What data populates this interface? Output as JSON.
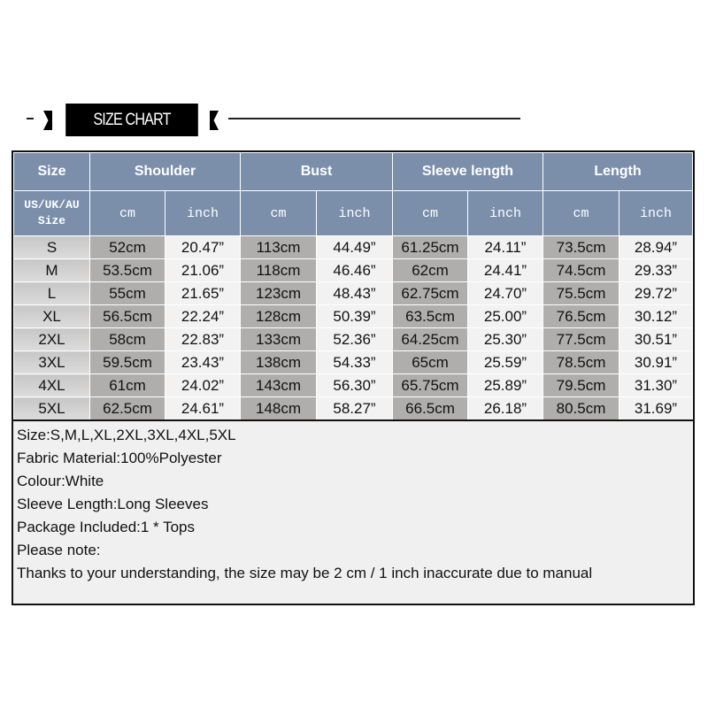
{
  "banner": {
    "title": "SIZE CHART"
  },
  "table": {
    "headers": [
      "Size",
      "Shoulder",
      "Bust",
      "Sleeve length",
      "Length"
    ],
    "subheaders": {
      "size": "US/UK/AU Size",
      "cm": "cm",
      "inch": "inch"
    },
    "rows": [
      [
        "S",
        "52cm",
        "20.47”",
        "113cm",
        "44.49”",
        "61.25cm",
        "24.11”",
        "73.5cm",
        "28.94”"
      ],
      [
        "M",
        "53.5cm",
        "21.06”",
        "118cm",
        "46.46”",
        "62cm",
        "24.41”",
        "74.5cm",
        "29.33”"
      ],
      [
        "L",
        "55cm",
        "21.65”",
        "123cm",
        "48.43”",
        "62.75cm",
        "24.70”",
        "75.5cm",
        "29.72”"
      ],
      [
        "XL",
        "56.5cm",
        "22.24”",
        "128cm",
        "50.39”",
        "63.5cm",
        "25.00”",
        "76.5cm",
        "30.12”"
      ],
      [
        "2XL",
        "58cm",
        "22.83”",
        "133cm",
        "52.36”",
        "64.25cm",
        "25.30”",
        "77.5cm",
        "30.51”"
      ],
      [
        "3XL",
        "59.5cm",
        "23.43”",
        "138cm",
        "54.33”",
        "65cm",
        "25.59”",
        "78.5cm",
        "30.91”"
      ],
      [
        "4XL",
        "61cm",
        "24.02”",
        "143cm",
        "56.30”",
        "65.75cm",
        "25.89”",
        "79.5cm",
        "31.30”"
      ],
      [
        "5XL",
        "62.5cm",
        "24.61”",
        "148cm",
        "58.27”",
        "66.5cm",
        "26.18”",
        "80.5cm",
        "31.69”"
      ]
    ]
  },
  "notes": [
    "Size:S,M,L,XL,2XL,3XL,4XL,5XL",
    "Fabric Material:100%Polyester",
    "Colour:White",
    "Sleeve Length:Long Sleeves",
    "Package Included:1 * Tops",
    "Please note:",
    "Thanks to your understanding, the size may be 2 cm / 1 inch inaccurate due to manual"
  ],
  "colors": {
    "header": "#7b8fab",
    "cm_cell": "#b0aeac",
    "inch_cell": "#f2f2f2"
  }
}
